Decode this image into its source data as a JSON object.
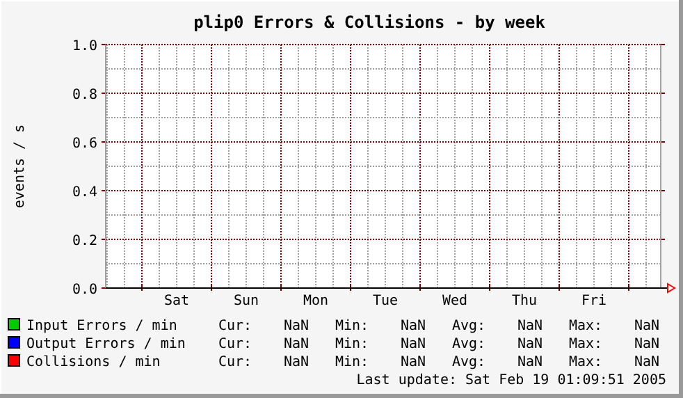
{
  "chart_data": {
    "type": "line",
    "title": "plip0 Errors & Collisions - by week",
    "ylabel": "events / s",
    "categories": [
      "Sat",
      "Sun",
      "Mon",
      "Tue",
      "Wed",
      "Thu",
      "Fri"
    ],
    "ylim": [
      0,
      1
    ],
    "yticks": [
      {
        "value": 0,
        "label": "0.0"
      },
      {
        "value": 0.1,
        "label": null
      },
      {
        "value": 0.2,
        "label": "0.2"
      },
      {
        "value": 0.3,
        "label": null
      },
      {
        "value": 0.4,
        "label": "0.4"
      },
      {
        "value": 0.5,
        "label": null
      },
      {
        "value": 0.6,
        "label": "0.6"
      },
      {
        "value": 0.7,
        "label": null
      },
      {
        "value": 0.8,
        "label": "0.8"
      },
      {
        "value": 0.9,
        "label": null
      },
      {
        "value": 1,
        "label": "1.0"
      }
    ],
    "grid": true,
    "legend": "bottom",
    "series": [
      {
        "name": "Input Errors / min",
        "color": "#00cc00",
        "values": [
          null,
          null,
          null,
          null,
          null,
          null,
          null
        ]
      },
      {
        "name": "Output Errors / min",
        "color": "#0000ff",
        "values": [
          null,
          null,
          null,
          null,
          null,
          null,
          null
        ]
      },
      {
        "name": "Collisions / min",
        "color": "#ff0000",
        "values": [
          null,
          null,
          null,
          null,
          null,
          null,
          null
        ]
      }
    ],
    "annotations": [
      "Cur: NaN Min: NaN Avg: NaN Max: NaN",
      "Cur: NaN Min: NaN Avg: NaN Max: NaN",
      "Cur: NaN Min: NaN Avg: NaN Max: NaN",
      "Last update: Sat Feb 19 01:09:51 2005"
    ]
  }
}
